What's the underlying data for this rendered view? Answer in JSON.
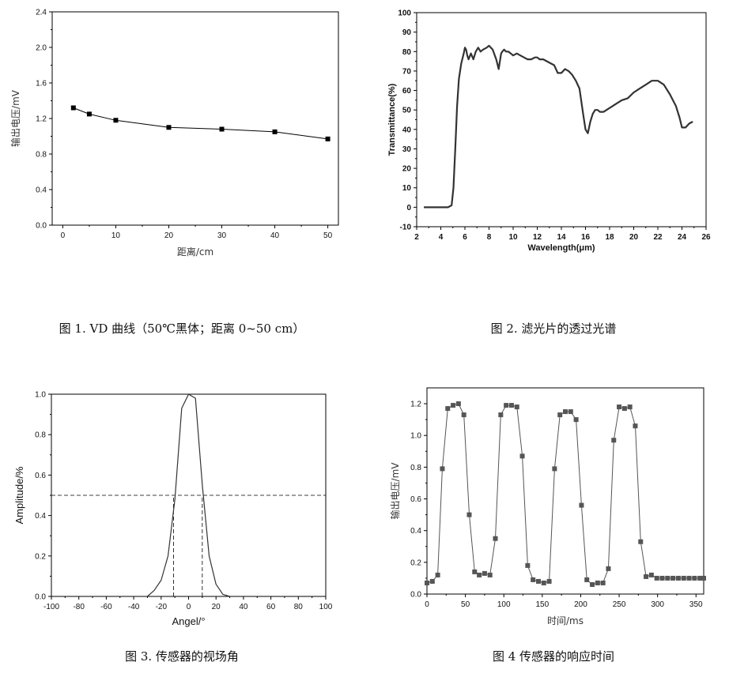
{
  "captions": {
    "c1": "图 1. VD 曲线（50℃黑体；距离 0~50 cm）",
    "c2": "图 2. 滤光片的透过光谱",
    "c3": "图 3. 传感器的视场角",
    "c4": "图 4 传感器的响应时间"
  },
  "chart_data": [
    {
      "type": "line",
      "xlabel": "距离/cm",
      "ylabel": "输出电压/mV",
      "xlim": [
        -2,
        52
      ],
      "ylim": [
        0,
        2.4
      ],
      "xticks": [
        "0",
        "10",
        "20",
        "30",
        "40",
        "50"
      ],
      "yticks": [
        "0.0",
        "0.4",
        "0.8",
        "1.2",
        "1.6",
        "2.0",
        "2.4"
      ],
      "x": [
        2,
        5,
        10,
        20,
        30,
        40,
        50
      ],
      "y": [
        1.32,
        1.25,
        1.18,
        1.1,
        1.08,
        1.05,
        0.97
      ],
      "marker": "square",
      "line_color": "#000000"
    },
    {
      "type": "line",
      "xlabel": "Wavelength(μm)",
      "ylabel": "Transmittance(%)",
      "xlim": [
        2,
        26
      ],
      "ylim": [
        -10,
        100
      ],
      "xticks": [
        "2",
        "4",
        "6",
        "8",
        "10",
        "12",
        "14",
        "16",
        "18",
        "20",
        "22",
        "24",
        "26"
      ],
      "yticks": [
        "-10",
        "0",
        "10",
        "20",
        "30",
        "40",
        "50",
        "60",
        "70",
        "80",
        "90",
        "100"
      ],
      "x": [
        2.6,
        3.5,
        4.0,
        4.6,
        4.9,
        5.05,
        5.2,
        5.35,
        5.5,
        5.7,
        5.9,
        6.0,
        6.1,
        6.2,
        6.3,
        6.5,
        6.7,
        6.9,
        7.1,
        7.3,
        7.5,
        7.8,
        8.0,
        8.3,
        8.6,
        8.8,
        9.0,
        9.1,
        9.25,
        9.4,
        9.6,
        9.8,
        10.0,
        10.3,
        10.6,
        10.9,
        11.2,
        11.5,
        11.8,
        12.0,
        12.2,
        12.5,
        12.8,
        13.1,
        13.4,
        13.7,
        14.0,
        14.3,
        14.6,
        14.9,
        15.2,
        15.5,
        15.8,
        16.0,
        16.2,
        16.4,
        16.6,
        16.8,
        17.0,
        17.2,
        17.5,
        18.0,
        18.5,
        19.0,
        19.5,
        20.0,
        20.5,
        21.0,
        21.5,
        22.0,
        22.5,
        23.0,
        23.5,
        23.8,
        24.0,
        24.3,
        24.6,
        24.9
      ],
      "y": [
        0,
        0,
        0,
        0,
        1,
        10,
        30,
        52,
        66,
        74,
        79,
        82,
        81,
        78,
        76,
        79,
        76,
        80,
        82,
        80,
        81,
        82,
        83,
        81,
        76,
        71,
        79,
        80,
        81,
        80,
        80,
        79,
        78,
        79,
        78,
        77,
        76,
        76,
        77,
        77,
        76,
        76,
        75,
        74,
        73,
        69,
        69,
        71,
        70,
        68,
        65,
        61,
        48,
        40,
        38,
        44,
        48,
        50,
        50,
        49,
        49,
        51,
        53,
        55,
        56,
        59,
        61,
        63,
        65,
        65,
        63,
        58,
        52,
        46,
        41,
        41,
        43,
        44
      ]
    },
    {
      "type": "line",
      "xlabel": "Angel/°",
      "ylabel": "Amplitude/%",
      "xlim": [
        -100,
        100
      ],
      "ylim": [
        0,
        1.0
      ],
      "xticks": [
        "-100",
        "-80",
        "-60",
        "-40",
        "-20",
        "0",
        "20",
        "40",
        "60",
        "80",
        "100"
      ],
      "yticks": [
        "0.0",
        "0.2",
        "0.4",
        "0.6",
        "0.8",
        "1.0"
      ],
      "x": [
        -30,
        -25,
        -20,
        -15,
        -10,
        -5,
        0,
        5,
        10,
        15,
        20,
        25,
        30
      ],
      "y": [
        0.0,
        0.03,
        0.08,
        0.2,
        0.48,
        0.93,
        1.0,
        0.98,
        0.55,
        0.2,
        0.06,
        0.01,
        0.0
      ],
      "reference_lines": [
        {
          "orientation": "horizontal",
          "value": 0.5,
          "style": "dashed"
        },
        {
          "orientation": "vertical",
          "value": -11,
          "from": 0,
          "to": 0.5,
          "style": "dashed"
        },
        {
          "orientation": "vertical",
          "value": 10,
          "from": 0,
          "to": 0.5,
          "style": "dashed"
        }
      ]
    },
    {
      "type": "line",
      "xlabel": "时间/ms",
      "ylabel": "输出电压/mV",
      "xlim": [
        0,
        360
      ],
      "ylim": [
        0,
        1.3
      ],
      "xticks": [
        "0",
        "50",
        "100",
        "150",
        "200",
        "250",
        "300",
        "350"
      ],
      "yticks": [
        "0.0",
        "0.2",
        "0.4",
        "0.6",
        "0.8",
        "1.0",
        "1.2"
      ],
      "x": [
        0,
        7,
        14,
        20,
        27,
        34,
        41,
        48,
        55,
        62,
        68,
        75,
        82,
        89,
        96,
        103,
        110,
        117,
        124,
        131,
        138,
        145,
        152,
        159,
        166,
        173,
        180,
        187,
        194,
        201,
        208,
        215,
        222,
        229,
        236,
        243,
        250,
        257,
        264,
        271,
        278,
        285,
        292,
        299,
        306,
        313,
        320,
        327,
        334,
        341,
        348,
        355,
        360
      ],
      "y": [
        0.07,
        0.08,
        0.12,
        0.79,
        1.17,
        1.19,
        1.2,
        1.13,
        0.5,
        0.14,
        0.12,
        0.13,
        0.12,
        0.35,
        1.13,
        1.19,
        1.19,
        1.18,
        0.87,
        0.18,
        0.09,
        0.08,
        0.07,
        0.08,
        0.79,
        1.13,
        1.15,
        1.15,
        1.1,
        0.56,
        0.09,
        0.06,
        0.07,
        0.07,
        0.16,
        0.97,
        1.18,
        1.17,
        1.18,
        1.06,
        0.33,
        0.11,
        0.12,
        0.1,
        0.1,
        0.1,
        0.1,
        0.1,
        0.1,
        0.1,
        0.1,
        0.1,
        0.1
      ],
      "marker": "square",
      "line_color": "#444444"
    }
  ]
}
